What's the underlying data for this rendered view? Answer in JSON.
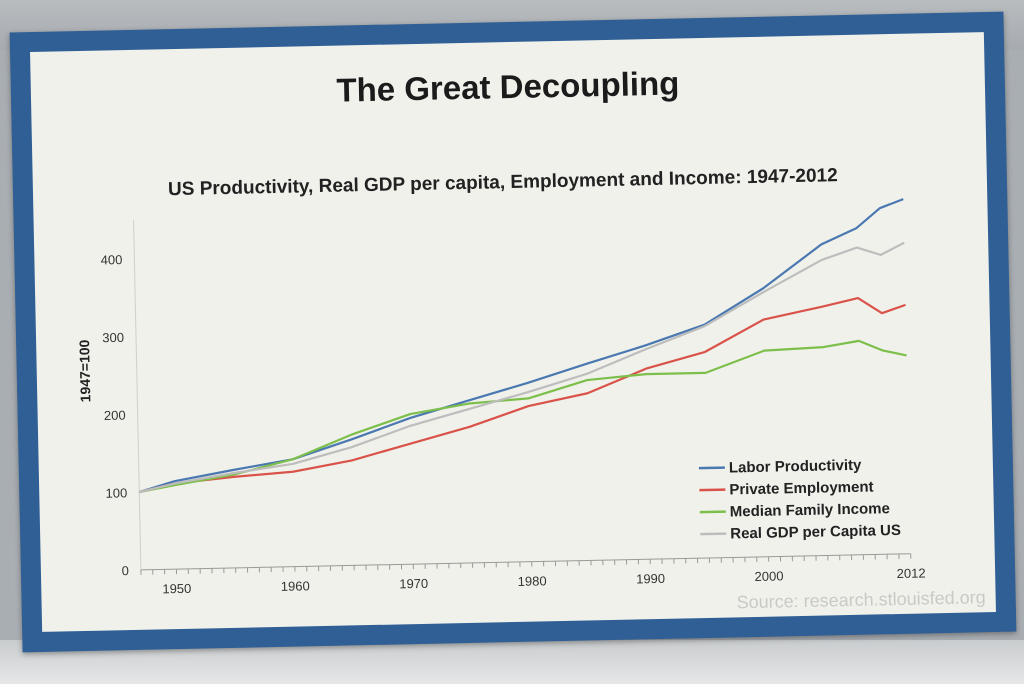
{
  "slide": {
    "title": "The Great Decoupling",
    "source": "Source: research.stlouisfed.org"
  },
  "colors": {
    "frame": "#2f5f95",
    "slide_bg": "#f1f1ec",
    "labor_productivity": "#4a78b0",
    "private_employment": "#d9534a",
    "median_family_income": "#7cbf4a",
    "real_gdp_per_capita": "#bdbdbd"
  },
  "chart_data": {
    "type": "line",
    "title": "US Productivity, Real GDP per capita, Employment and Income: 1947-2012",
    "xlabel": "",
    "ylabel": "1947=100",
    "xlim": [
      1947,
      2012
    ],
    "ylim": [
      0,
      450
    ],
    "x_ticks": [
      "1950",
      "1960",
      "1970",
      "1980",
      "1990",
      "2000",
      "2012"
    ],
    "y_ticks": [
      "0",
      "100",
      "200",
      "300",
      "400"
    ],
    "grid": false,
    "legend": "bottom-right",
    "x": [
      1947,
      1950,
      1955,
      1960,
      1965,
      1970,
      1975,
      1980,
      1985,
      1990,
      1995,
      2000,
      2005,
      2008,
      2010,
      2012
    ],
    "series": [
      {
        "name": "Labor Productivity",
        "color": "#4a78b0",
        "values": [
          100,
          113,
          126,
          138,
          162,
          188,
          209,
          230,
          253,
          275,
          300,
          345,
          400,
          420,
          445,
          456
        ]
      },
      {
        "name": "Private Employment",
        "color": "#d9534a",
        "values": [
          100,
          110,
          117,
          122,
          135,
          155,
          175,
          200,
          215,
          245,
          265,
          305,
          320,
          330,
          310,
          320
        ]
      },
      {
        "name": "Median Family Income",
        "color": "#7cbf4a",
        "values": [
          100,
          108,
          120,
          138,
          168,
          193,
          205,
          210,
          232,
          238,
          238,
          265,
          268,
          275,
          262,
          255
        ]
      },
      {
        "name": "Real GDP per Capita US",
        "color": "#bdbdbd",
        "values": [
          100,
          110,
          122,
          132,
          152,
          178,
          198,
          218,
          240,
          270,
          298,
          340,
          380,
          395,
          385,
          400
        ]
      }
    ]
  }
}
